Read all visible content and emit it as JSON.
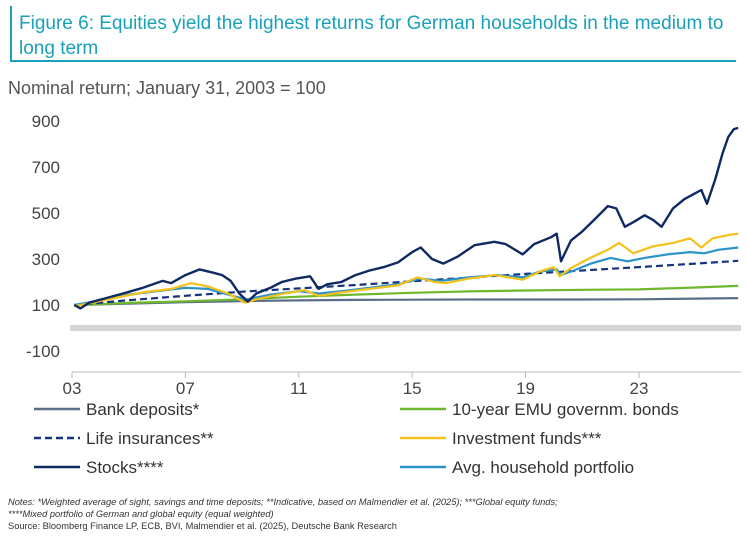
{
  "title": "Figure 6: Equities yield the highest returns for German households in the medium to long term",
  "subtitle": "Nominal return; January 31, 2003 = 100",
  "notes": [
    "Notes: *Weighted average of sight, savings and time deposits; **Indicative, based on Malmendier et al. (2025); ***Global equity funds;",
    "****Mixed portfolio of German and global equity (equal weighted)"
  ],
  "source": "Source: Bloomberg Finance LP, ECB, BVI, Malmendier et al. (2025), Deutsche Bank Research",
  "chart_data": {
    "type": "line",
    "xlim": [
      2003,
      2026.6
    ],
    "ylim": [
      -100,
      900
    ],
    "xticks": [
      {
        "value": 2003,
        "label": "03"
      },
      {
        "value": 2007,
        "label": "07"
      },
      {
        "value": 2011,
        "label": "11"
      },
      {
        "value": 2015,
        "label": "15"
      },
      {
        "value": 2019,
        "label": "19"
      },
      {
        "value": 2023,
        "label": "23"
      }
    ],
    "yticks": [
      {
        "value": 900,
        "label": "900"
      },
      {
        "value": 700,
        "label": "700"
      },
      {
        "value": 500,
        "label": "500"
      },
      {
        "value": 300,
        "label": "300"
      },
      {
        "value": 100,
        "label": "100"
      },
      {
        "value": -100,
        "label": "-100"
      }
    ],
    "zero_line": 0,
    "grid": false,
    "legend_position": "bottom",
    "series": [
      {
        "name": "Bank deposits*",
        "color": "#5b6e87",
        "dash": "solid",
        "points": [
          [
            2003.08,
            100
          ],
          [
            2005,
            106
          ],
          [
            2007,
            112
          ],
          [
            2009,
            117
          ],
          [
            2011,
            120
          ],
          [
            2013,
            122
          ],
          [
            2015,
            123
          ],
          [
            2017,
            124
          ],
          [
            2019,
            124
          ],
          [
            2021,
            124
          ],
          [
            2023,
            125
          ],
          [
            2025,
            128
          ],
          [
            2026.5,
            130
          ]
        ]
      },
      {
        "name": "10-year EMU governm. bonds",
        "color": "#6fb82e",
        "dash": "solid",
        "points": [
          [
            2003.08,
            100
          ],
          [
            2005,
            109
          ],
          [
            2007,
            116
          ],
          [
            2009,
            125
          ],
          [
            2011,
            136
          ],
          [
            2013,
            145
          ],
          [
            2015,
            153
          ],
          [
            2017,
            159
          ],
          [
            2019,
            163
          ],
          [
            2021,
            166
          ],
          [
            2023,
            168
          ],
          [
            2025,
            176
          ],
          [
            2026.5,
            183
          ]
        ]
      },
      {
        "name": "Life insurances**",
        "color": "#14357d",
        "dash": "dashed",
        "points": [
          [
            2003.08,
            100
          ],
          [
            2005,
            121
          ],
          [
            2007,
            140
          ],
          [
            2009,
            158
          ],
          [
            2011,
            172
          ],
          [
            2013,
            187
          ],
          [
            2015,
            203
          ],
          [
            2017,
            219
          ],
          [
            2019,
            235
          ],
          [
            2021,
            250
          ],
          [
            2023,
            265
          ],
          [
            2025,
            280
          ],
          [
            2026.5,
            292
          ]
        ]
      },
      {
        "name": "Investment funds***",
        "color": "#f2c21b",
        "dash": "solid",
        "points": [
          [
            2003.08,
            95
          ],
          [
            2003.5,
            105
          ],
          [
            2004.5,
            130
          ],
          [
            2005.5,
            155
          ],
          [
            2006.5,
            170
          ],
          [
            2007.2,
            195
          ],
          [
            2007.8,
            180
          ],
          [
            2008.5,
            150
          ],
          [
            2009.1,
            110
          ],
          [
            2009.5,
            125
          ],
          [
            2010.3,
            145
          ],
          [
            2011.2,
            165
          ],
          [
            2011.7,
            140
          ],
          [
            2012.5,
            155
          ],
          [
            2013.5,
            170
          ],
          [
            2014.5,
            185
          ],
          [
            2015.2,
            220
          ],
          [
            2015.8,
            200
          ],
          [
            2016.2,
            195
          ],
          [
            2017,
            215
          ],
          [
            2017.9,
            230
          ],
          [
            2018.9,
            210
          ],
          [
            2019.5,
            245
          ],
          [
            2020.0,
            265
          ],
          [
            2020.2,
            225
          ],
          [
            2020.6,
            260
          ],
          [
            2021.2,
            300
          ],
          [
            2021.9,
            340
          ],
          [
            2022.3,
            370
          ],
          [
            2022.8,
            325
          ],
          [
            2023.5,
            355
          ],
          [
            2024.2,
            370
          ],
          [
            2024.8,
            390
          ],
          [
            2025.2,
            350
          ],
          [
            2025.6,
            390
          ],
          [
            2026.2,
            405
          ],
          [
            2026.5,
            410
          ]
        ]
      },
      {
        "name": "Stocks****",
        "color": "#0f2a62",
        "dash": "solid",
        "points": [
          [
            2003.08,
            100
          ],
          [
            2003.3,
            85
          ],
          [
            2003.6,
            110
          ],
          [
            2004.2,
            130
          ],
          [
            2004.8,
            150
          ],
          [
            2005.5,
            175
          ],
          [
            2006.2,
            205
          ],
          [
            2006.5,
            195
          ],
          [
            2007.0,
            230
          ],
          [
            2007.5,
            255
          ],
          [
            2008.0,
            240
          ],
          [
            2008.3,
            230
          ],
          [
            2008.6,
            205
          ],
          [
            2008.9,
            150
          ],
          [
            2009.2,
            115
          ],
          [
            2009.5,
            150
          ],
          [
            2010.0,
            175
          ],
          [
            2010.4,
            200
          ],
          [
            2010.9,
            215
          ],
          [
            2011.4,
            225
          ],
          [
            2011.7,
            170
          ],
          [
            2012.0,
            190
          ],
          [
            2012.5,
            200
          ],
          [
            2013.0,
            230
          ],
          [
            2013.5,
            250
          ],
          [
            2014.0,
            265
          ],
          [
            2014.5,
            285
          ],
          [
            2015.0,
            330
          ],
          [
            2015.3,
            350
          ],
          [
            2015.7,
            300
          ],
          [
            2016.1,
            280
          ],
          [
            2016.6,
            310
          ],
          [
            2017.2,
            360
          ],
          [
            2017.9,
            375
          ],
          [
            2018.3,
            365
          ],
          [
            2018.9,
            320
          ],
          [
            2019.3,
            365
          ],
          [
            2019.9,
            395
          ],
          [
            2020.1,
            410
          ],
          [
            2020.25,
            290
          ],
          [
            2020.6,
            380
          ],
          [
            2021.0,
            420
          ],
          [
            2021.5,
            480
          ],
          [
            2021.9,
            530
          ],
          [
            2022.2,
            520
          ],
          [
            2022.5,
            440
          ],
          [
            2022.8,
            460
          ],
          [
            2023.2,
            490
          ],
          [
            2023.5,
            470
          ],
          [
            2023.8,
            440
          ],
          [
            2024.2,
            520
          ],
          [
            2024.6,
            560
          ],
          [
            2024.9,
            580
          ],
          [
            2025.2,
            600
          ],
          [
            2025.4,
            540
          ],
          [
            2025.7,
            650
          ],
          [
            2025.95,
            760
          ],
          [
            2026.15,
            830
          ],
          [
            2026.35,
            865
          ],
          [
            2026.5,
            870
          ]
        ]
      },
      {
        "name": "Avg. household portfolio",
        "color": "#2a93c9",
        "dash": "solid",
        "points": [
          [
            2003.08,
            100
          ],
          [
            2004,
            120
          ],
          [
            2005,
            145
          ],
          [
            2006,
            160
          ],
          [
            2007,
            175
          ],
          [
            2007.8,
            170
          ],
          [
            2008.8,
            135
          ],
          [
            2009.2,
            125
          ],
          [
            2010,
            145
          ],
          [
            2011,
            160
          ],
          [
            2011.7,
            150
          ],
          [
            2012.5,
            160
          ],
          [
            2013.5,
            175
          ],
          [
            2014.5,
            190
          ],
          [
            2015.3,
            215
          ],
          [
            2016,
            205
          ],
          [
            2017,
            220
          ],
          [
            2018,
            230
          ],
          [
            2018.9,
            220
          ],
          [
            2019.5,
            245
          ],
          [
            2020.1,
            255
          ],
          [
            2020.25,
            230
          ],
          [
            2020.7,
            250
          ],
          [
            2021.3,
            280
          ],
          [
            2022,
            305
          ],
          [
            2022.6,
            290
          ],
          [
            2023.2,
            305
          ],
          [
            2024,
            320
          ],
          [
            2024.8,
            330
          ],
          [
            2025.3,
            325
          ],
          [
            2025.8,
            340
          ],
          [
            2026.5,
            350
          ]
        ]
      }
    ]
  }
}
